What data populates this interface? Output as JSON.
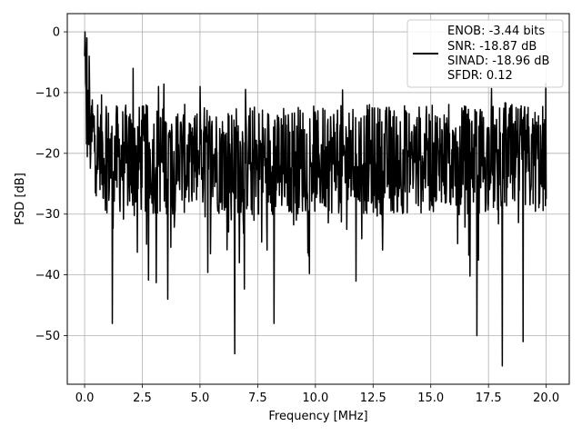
{
  "chart_data": {
    "type": "line",
    "title": "",
    "xlabel": "Frequency [MHz]",
    "ylabel": "PSD [dB]",
    "xlim": [
      -0.75,
      21.0
    ],
    "ylim": [
      -58,
      3
    ],
    "xticks": [
      0.0,
      2.5,
      5.0,
      7.5,
      10.0,
      12.5,
      15.0,
      17.5,
      20.0
    ],
    "xtick_labels": [
      "0.0",
      "2.5",
      "5.0",
      "7.5",
      "10.0",
      "12.5",
      "15.0",
      "17.5",
      "20.0"
    ],
    "yticks": [
      0,
      -10,
      -20,
      -30,
      -40,
      -50
    ],
    "ytick_labels": [
      "0",
      "−10",
      "−20",
      "−30",
      "−40",
      "−50"
    ],
    "grid": true,
    "legend_position": "top-right",
    "legend": [
      "ENOB: -3.44 bits",
      "SNR: -18.87 dB",
      "SINAD: -18.96 dB",
      "SFDR: 0.12"
    ],
    "series": [
      {
        "color": "#000000",
        "x_range": [
          0.0,
          20.0
        ],
        "point_count": 1200,
        "typical_range_db": [
          -28,
          -14
        ],
        "peak_x": 0.03,
        "peak_y": 0,
        "min_points": [
          {
            "x": 1.2,
            "y": -48
          },
          {
            "x": 3.6,
            "y": -44
          },
          {
            "x": 6.5,
            "y": -53
          },
          {
            "x": 8.2,
            "y": -48
          },
          {
            "x": 17.0,
            "y": -50
          },
          {
            "x": 18.1,
            "y": -55
          },
          {
            "x": 19.0,
            "y": -51
          }
        ],
        "max_points": [
          {
            "x": 0.0,
            "y": 0
          },
          {
            "x": 0.1,
            "y": -1
          },
          {
            "x": 0.2,
            "y": -4
          },
          {
            "x": 2.1,
            "y": -6
          },
          {
            "x": 3.2,
            "y": -9
          },
          {
            "x": 5.0,
            "y": -9
          }
        ]
      }
    ]
  }
}
